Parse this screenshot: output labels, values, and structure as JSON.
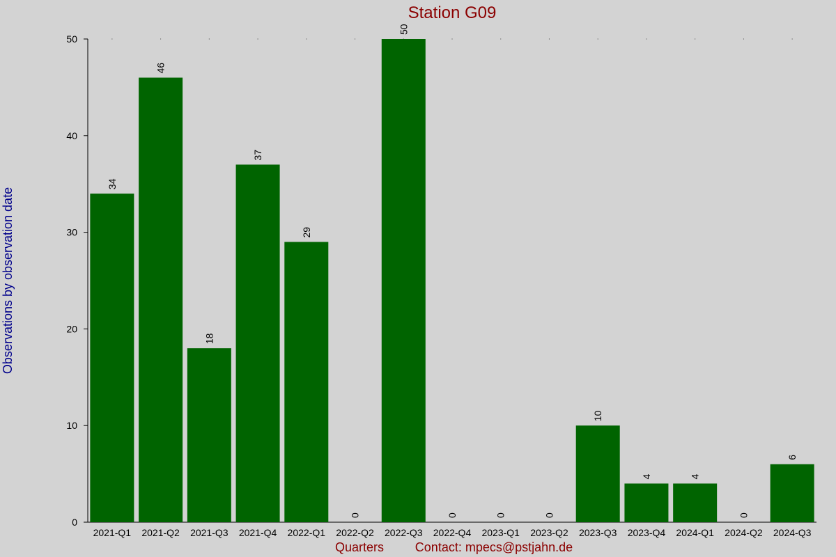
{
  "chart_data": {
    "type": "bar",
    "title": "Station G09",
    "xlabel": "Quarters",
    "ylabel": "Observations by observation date",
    "contact": "Contact: mpecs@pstjahn.de",
    "categories": [
      "2021-Q1",
      "2021-Q2",
      "2021-Q3",
      "2021-Q4",
      "2022-Q1",
      "2022-Q2",
      "2022-Q3",
      "2022-Q4",
      "2023-Q1",
      "2023-Q2",
      "2023-Q3",
      "2023-Q4",
      "2024-Q1",
      "2024-Q2",
      "2024-Q3"
    ],
    "values": [
      34,
      46,
      18,
      37,
      29,
      0,
      50,
      0,
      0,
      0,
      10,
      4,
      4,
      0,
      6
    ],
    "ylim": [
      0,
      50
    ],
    "yticks": [
      0,
      10,
      20,
      30,
      40,
      50
    ],
    "grid": false,
    "bar_color": "#006400",
    "title_color": "#8b0000",
    "ylabel_color": "#00008b"
  }
}
